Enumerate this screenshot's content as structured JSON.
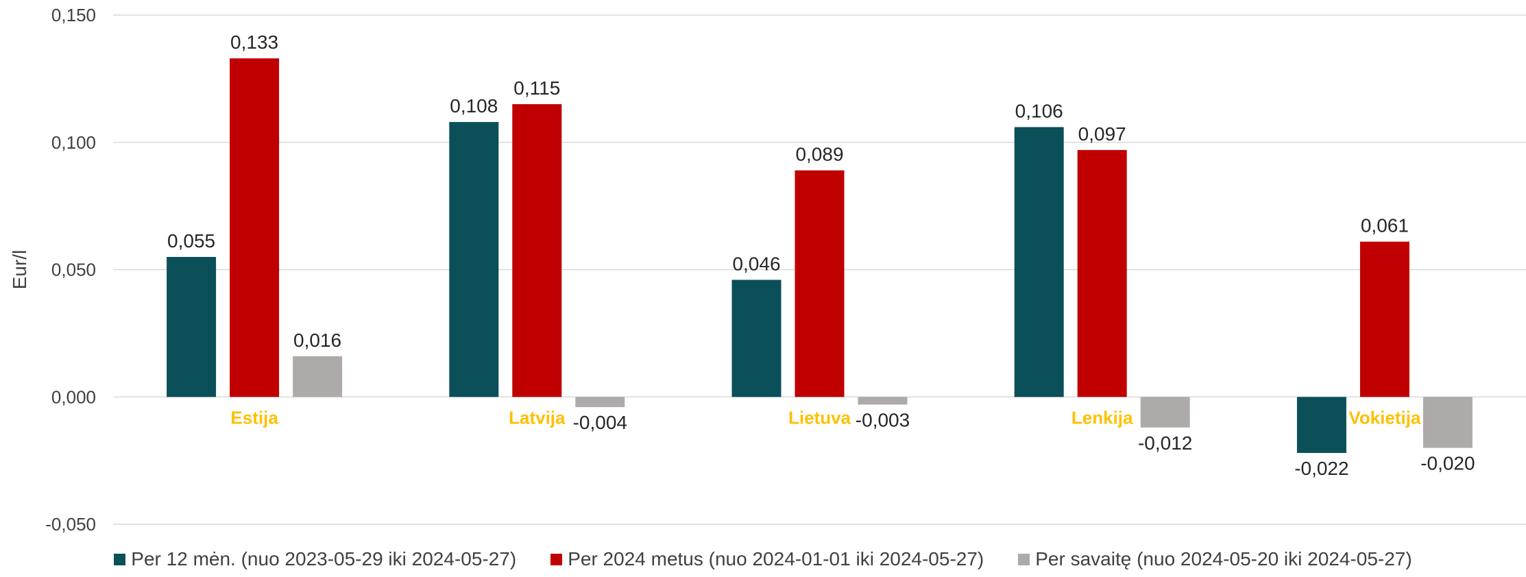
{
  "chart_data": {
    "type": "bar",
    "title": "",
    "xlabel": "",
    "ylabel": "Eur/l",
    "ylim": [
      -0.05,
      0.15
    ],
    "yticks": [
      -0.05,
      0.0,
      0.05,
      0.1,
      0.15
    ],
    "ytick_labels": [
      "-0,050",
      "0,000",
      "0,050",
      "0,100",
      "0,150"
    ],
    "grid": true,
    "legend_position": "bottom",
    "categories": [
      "Estija",
      "Latvija",
      "Lietuva",
      "Lenkija",
      "Vokietija"
    ],
    "category_label_color": "#FFC000",
    "series": [
      {
        "name": "Per 12 mėn. (nuo 2023-05-29 iki 2024-05-27)",
        "color": "#0B4F59",
        "values": [
          0.055,
          0.108,
          0.046,
          0.106,
          -0.022
        ],
        "labels": [
          "0,055",
          "0,108",
          "0,046",
          "0,106",
          "-0,022"
        ]
      },
      {
        "name": "Per 2024 metus (nuo 2024-01-01 iki 2024-05-27)",
        "color": "#C00000",
        "values": [
          0.133,
          0.115,
          0.089,
          0.097,
          0.061
        ],
        "labels": [
          "0,133",
          "0,115",
          "0,089",
          "0,097",
          "0,061"
        ]
      },
      {
        "name": "Per savaitę (nuo 2024-05-20 iki 2024-05-27)",
        "color": "#AEAAAA",
        "values": [
          0.016,
          -0.004,
          -0.003,
          -0.012,
          -0.02
        ],
        "labels": [
          "0,016",
          "-0,004",
          "-0,003",
          "-0,012",
          "-0,020"
        ]
      }
    ]
  }
}
